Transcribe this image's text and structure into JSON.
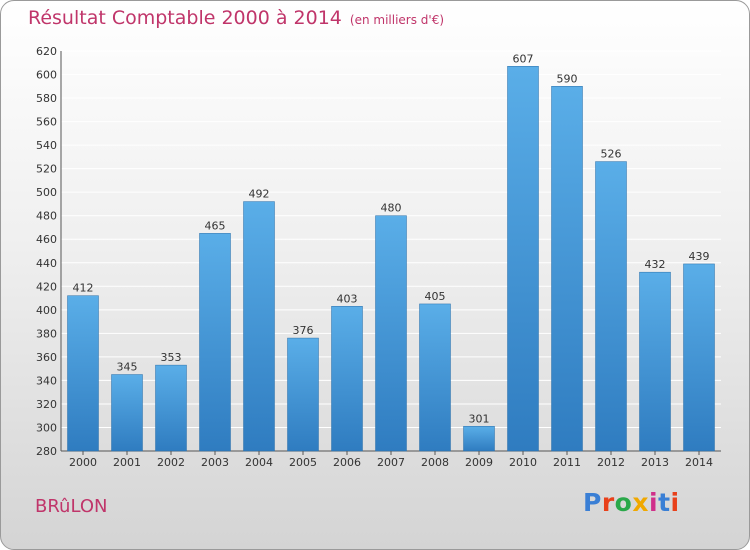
{
  "header": {
    "title": "Résultat Comptable 2000 à 2014",
    "subtitle": "(en milliers d'€)"
  },
  "footer": {
    "commune": "BRûLON",
    "logo_text": "Proxiti",
    "logo_colors": [
      "#3a7fd5",
      "#e8401a",
      "#2aa84a",
      "#f0a800",
      "#d0308a",
      "#3a7fd5",
      "#e8401a"
    ]
  },
  "colors": {
    "bar_light": "#5aaee8",
    "bar_dark": "#2f7cc0",
    "title": "#c0356a",
    "grid": "#ffffff"
  },
  "chart_data": {
    "type": "bar",
    "title": "Résultat Comptable 2000 à 2014",
    "categories": [
      "2000",
      "2001",
      "2002",
      "2003",
      "2004",
      "2005",
      "2006",
      "2007",
      "2008",
      "2009",
      "2010",
      "2011",
      "2012",
      "2013",
      "2014"
    ],
    "values": [
      412,
      345,
      353,
      465,
      492,
      376,
      403,
      480,
      405,
      301,
      607,
      590,
      526,
      432,
      439
    ],
    "ylim": [
      280,
      620
    ],
    "yticks": [
      280,
      300,
      320,
      340,
      360,
      380,
      400,
      420,
      440,
      460,
      480,
      500,
      520,
      540,
      560,
      580,
      600,
      620
    ],
    "grid": true,
    "legend": "none"
  }
}
